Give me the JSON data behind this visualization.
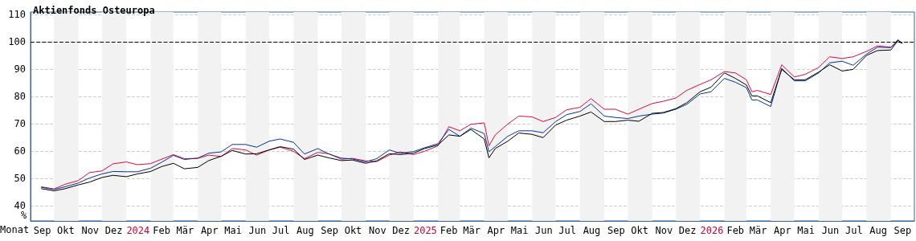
{
  "chart_data": {
    "type": "line",
    "title": "Aktienfonds Osteuropa",
    "xlabel": "Monat",
    "ylabel": "%",
    "x": [
      "2023-09-15",
      "2023-10-01",
      "2023-10-15",
      "2023-11-01",
      "2023-11-15",
      "2023-12-01",
      "2023-12-15",
      "2024-01-01",
      "2024-01-15",
      "2024-02-01",
      "2024-02-15",
      "2024-03-01",
      "2024-03-15",
      "2024-04-01",
      "2024-04-15",
      "2024-05-01",
      "2024-05-15",
      "2024-06-01",
      "2024-06-15",
      "2024-07-01",
      "2024-07-15",
      "2024-08-01",
      "2024-08-15",
      "2024-09-01",
      "2024-09-15",
      "2024-10-01",
      "2024-10-15",
      "2024-11-01",
      "2024-11-15",
      "2024-12-01",
      "2024-12-15",
      "2025-01-01",
      "2025-01-15",
      "2025-02-01",
      "2025-02-15",
      "2025-03-01",
      "2025-03-15",
      "2025-04-01",
      "2025-04-07",
      "2025-04-15",
      "2025-05-01",
      "2025-05-15",
      "2025-06-01",
      "2025-06-15",
      "2025-07-01",
      "2025-07-15",
      "2025-08-01",
      "2025-08-15",
      "2025-09-01",
      "2025-09-15",
      "2025-10-01",
      "2025-10-15",
      "2025-11-01",
      "2025-11-15",
      "2025-12-01",
      "2025-12-15",
      "2026-01-01",
      "2026-01-15",
      "2026-02-01",
      "2026-02-15",
      "2026-03-01",
      "2026-03-08",
      "2026-03-15",
      "2026-04-01",
      "2026-04-15",
      "2026-05-01",
      "2026-05-15",
      "2026-06-01",
      "2026-06-15",
      "2026-07-01",
      "2026-07-15",
      "2026-08-01",
      "2026-08-15",
      "2026-09-01",
      "2026-09-10",
      "2026-09-15"
    ],
    "series": [
      {
        "color": "#dc0a3c",
        "values": [
          47.0,
          46.2,
          47.9,
          49.3,
          52.2,
          52.8,
          55.4,
          56.1,
          55.1,
          55.5,
          57.1,
          58.8,
          57.3,
          57.4,
          58.6,
          58.1,
          61.0,
          60.5,
          58.6,
          60.5,
          61.5,
          60.0,
          57.3,
          59.6,
          59.1,
          57.1,
          57.4,
          56.5,
          56.2,
          58.6,
          59.8,
          58.8,
          60.0,
          62.0,
          69.0,
          67.5,
          69.9,
          70.4,
          62.0,
          66.0,
          70.0,
          72.9,
          72.6,
          70.9,
          72.4,
          75.2,
          76.1,
          79.3,
          75.4,
          75.4,
          73.6,
          75.4,
          77.5,
          78.3,
          79.5,
          82.3,
          84.5,
          86.2,
          89.2,
          88.7,
          86.2,
          81.8,
          82.3,
          80.8,
          91.7,
          87.2,
          88.2,
          90.7,
          94.6,
          94.0,
          94.6,
          96.6,
          98.6,
          98.1,
          100.1,
          99.6
        ]
      },
      {
        "color": "#003399",
        "values": [
          46.8,
          46.0,
          47.0,
          48.4,
          50.2,
          51.7,
          52.6,
          52.5,
          52.5,
          53.8,
          56.0,
          58.5,
          57.0,
          57.5,
          59.3,
          59.8,
          62.5,
          62.5,
          61.5,
          63.7,
          64.5,
          63.3,
          59.0,
          61.0,
          59.0,
          57.5,
          57.2,
          56.1,
          57.3,
          60.5,
          59.3,
          59.9,
          61.3,
          62.8,
          68.0,
          65.5,
          68.5,
          66.5,
          59.8,
          61.7,
          65.5,
          67.5,
          67.5,
          66.8,
          70.9,
          73.4,
          74.6,
          77.4,
          72.9,
          72.4,
          72.0,
          72.9,
          73.6,
          74.0,
          75.4,
          77.2,
          81.0,
          81.8,
          86.7,
          85.3,
          83.3,
          78.8,
          78.8,
          76.4,
          90.4,
          85.8,
          85.8,
          88.7,
          92.4,
          93.0,
          91.5,
          95.6,
          98.1,
          98.0,
          100.9,
          99.6
        ]
      },
      {
        "color": "#000000",
        "values": [
          46.3,
          45.5,
          46.3,
          47.7,
          48.7,
          50.4,
          51.2,
          50.7,
          51.7,
          52.6,
          54.4,
          55.6,
          53.6,
          54.1,
          56.6,
          58.2,
          60.3,
          59.0,
          59.1,
          60.5,
          61.7,
          60.8,
          57.0,
          58.6,
          57.6,
          56.6,
          56.8,
          55.6,
          56.5,
          59.1,
          58.8,
          59.3,
          61.0,
          62.3,
          66.0,
          65.5,
          68.0,
          64.5,
          57.6,
          61.0,
          63.7,
          66.7,
          66.2,
          65.0,
          69.6,
          71.4,
          72.9,
          74.4,
          70.9,
          70.9,
          71.4,
          71.0,
          73.9,
          74.2,
          75.6,
          77.8,
          81.8,
          83.5,
          88.7,
          86.7,
          84.3,
          80.3,
          80.3,
          77.8,
          90.0,
          86.2,
          86.2,
          89.0,
          91.7,
          89.4,
          90.0,
          95.1,
          96.9,
          97.1,
          100.6,
          99.7
        ]
      }
    ],
    "xlim": [
      "2023-09-01",
      "2026-10-01"
    ],
    "xticks": [
      {
        "value": "2023-09-16",
        "label": "Sep"
      },
      {
        "value": "2023-10-16",
        "label": "Okt"
      },
      {
        "value": "2023-11-16",
        "label": "Nov"
      },
      {
        "value": "2023-12-16",
        "label": "Dez"
      },
      {
        "value": "2024-01-16",
        "label": "2024"
      },
      {
        "value": "2024-02-15",
        "label": "Feb"
      },
      {
        "value": "2024-03-16",
        "label": "Mär"
      },
      {
        "value": "2024-04-16",
        "label": "Apr"
      },
      {
        "value": "2024-05-16",
        "label": "Mai"
      },
      {
        "value": "2024-06-16",
        "label": "Jun"
      },
      {
        "value": "2024-07-16",
        "label": "Jul"
      },
      {
        "value": "2024-08-16",
        "label": "Aug"
      },
      {
        "value": "2024-09-16",
        "label": "Sep"
      },
      {
        "value": "2024-10-16",
        "label": "Okt"
      },
      {
        "value": "2024-11-16",
        "label": "Nov"
      },
      {
        "value": "2024-12-16",
        "label": "Dez"
      },
      {
        "value": "2025-01-16",
        "label": "2025"
      },
      {
        "value": "2025-02-15",
        "label": "Feb"
      },
      {
        "value": "2025-03-16",
        "label": "Mär"
      },
      {
        "value": "2025-04-16",
        "label": "Apr"
      },
      {
        "value": "2025-05-16",
        "label": "Mai"
      },
      {
        "value": "2025-06-16",
        "label": "Jun"
      },
      {
        "value": "2025-07-16",
        "label": "Jul"
      },
      {
        "value": "2025-08-16",
        "label": "Aug"
      },
      {
        "value": "2025-09-16",
        "label": "Sep"
      },
      {
        "value": "2025-10-16",
        "label": "Okt"
      },
      {
        "value": "2025-11-16",
        "label": "Nov"
      },
      {
        "value": "2025-12-16",
        "label": "Dez"
      },
      {
        "value": "2026-01-16",
        "label": "2026"
      },
      {
        "value": "2026-02-15",
        "label": "Feb"
      },
      {
        "value": "2026-03-16",
        "label": "Mär"
      },
      {
        "value": "2026-04-16",
        "label": "Apr"
      },
      {
        "value": "2026-05-16",
        "label": "Mai"
      },
      {
        "value": "2026-06-16",
        "label": "Jun"
      },
      {
        "value": "2026-07-16",
        "label": "Jul"
      },
      {
        "value": "2026-08-16",
        "label": "Aug"
      },
      {
        "value": "2026-09-16",
        "label": "Sep"
      }
    ],
    "ylim": [
      34.5,
      111
    ],
    "yticks": [
      40,
      50,
      60,
      70,
      80,
      90,
      100,
      110
    ],
    "grid": "y",
    "ref_lines": [
      {
        "axis": "y",
        "value": 100,
        "color": "#000000",
        "line_style": "dashed"
      }
    ],
    "bands": [
      {
        "axis": "x",
        "from": "2023-10-01",
        "to": "2023-11-01",
        "color": "#f2f2f2"
      },
      {
        "axis": "x",
        "from": "2023-12-01",
        "to": "2024-01-01",
        "color": "#f2f2f2"
      },
      {
        "axis": "x",
        "from": "2024-02-01",
        "to": "2024-03-01",
        "color": "#f2f2f2"
      },
      {
        "axis": "x",
        "from": "2024-04-01",
        "to": "2024-05-01",
        "color": "#f2f2f2"
      },
      {
        "axis": "x",
        "from": "2024-06-01",
        "to": "2024-07-01",
        "color": "#f2f2f2"
      },
      {
        "axis": "x",
        "from": "2024-08-01",
        "to": "2024-09-01",
        "color": "#f2f2f2"
      },
      {
        "axis": "x",
        "from": "2024-10-01",
        "to": "2024-11-01",
        "color": "#f2f2f2"
      },
      {
        "axis": "x",
        "from": "2024-12-01",
        "to": "2025-01-01",
        "color": "#f2f2f2"
      },
      {
        "axis": "x",
        "from": "2025-02-01",
        "to": "2025-03-01",
        "color": "#f2f2f2"
      },
      {
        "axis": "x",
        "from": "2025-04-01",
        "to": "2025-05-01",
        "color": "#f2f2f2"
      },
      {
        "axis": "x",
        "from": "2025-06-01",
        "to": "2025-07-01",
        "color": "#f2f2f2"
      },
      {
        "axis": "x",
        "from": "2025-08-01",
        "to": "2025-09-01",
        "color": "#f2f2f2"
      },
      {
        "axis": "x",
        "from": "2025-10-01",
        "to": "2025-11-01",
        "color": "#f2f2f2"
      },
      {
        "axis": "x",
        "from": "2025-12-01",
        "to": "2026-01-01",
        "color": "#f2f2f2"
      },
      {
        "axis": "x",
        "from": "2026-02-01",
        "to": "2026-03-01",
        "color": "#f2f2f2"
      },
      {
        "axis": "x",
        "from": "2026-04-01",
        "to": "2026-05-01",
        "color": "#f2f2f2"
      },
      {
        "axis": "x",
        "from": "2026-06-01",
        "to": "2026-07-01",
        "color": "#f2f2f2"
      },
      {
        "axis": "x",
        "from": "2026-08-01",
        "to": "2026-09-01",
        "color": "#f2f2f2"
      }
    ],
    "marker": "none",
    "line_style": "solid"
  }
}
